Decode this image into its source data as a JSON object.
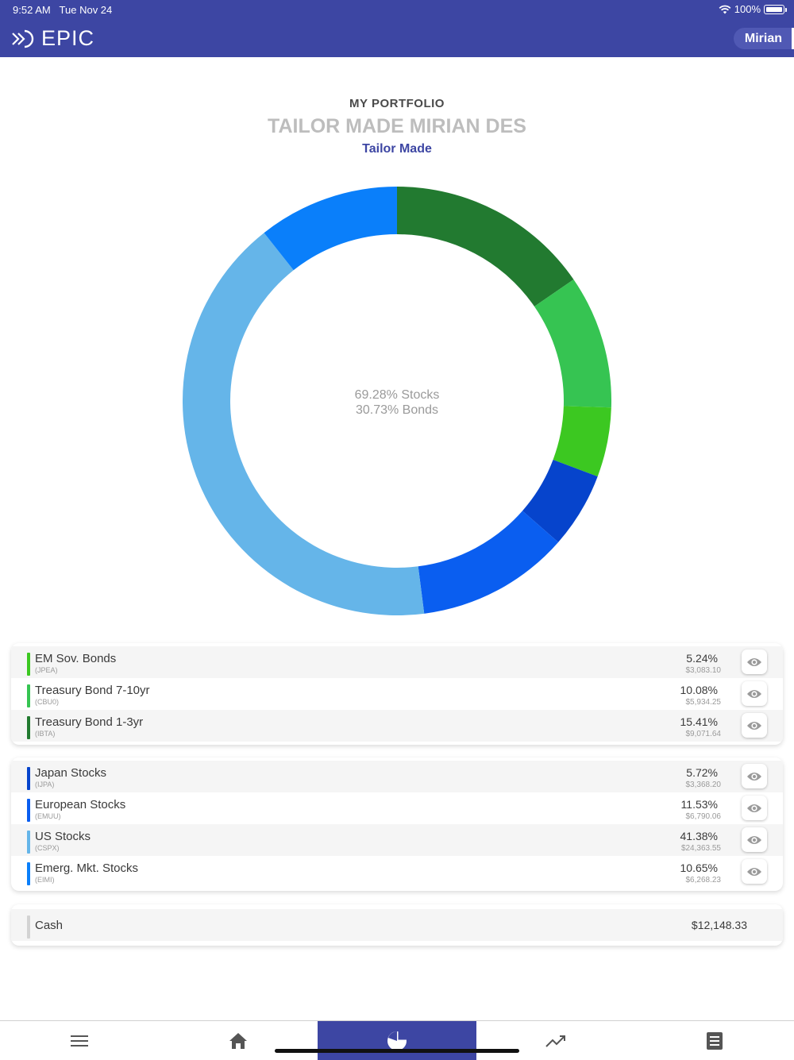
{
  "status": {
    "time": "9:52 AM",
    "date": "Tue Nov 24",
    "battery": "100%"
  },
  "header": {
    "logo_text": "EPIC",
    "user": "Mirian"
  },
  "titles": {
    "section": "MY PORTFOLIO",
    "portfolio_name": "TAILOR MADE MIRIAN DES",
    "portfolio_type": "Tailor Made"
  },
  "chart_data": {
    "type": "pie",
    "donut": true,
    "center_text": [
      "69.28% Stocks",
      "30.73% Bonds"
    ],
    "slices": [
      {
        "label": "Treasury Bond 1-3yr",
        "value": 15.41,
        "color": "#227a30"
      },
      {
        "label": "Treasury Bond 7-10yr",
        "value": 10.08,
        "color": "#36c452"
      },
      {
        "label": "EM Sov. Bonds",
        "value": 5.24,
        "color": "#3cc821"
      },
      {
        "label": "Japan Stocks",
        "value": 5.72,
        "color": "#0644cc"
      },
      {
        "label": "European Stocks",
        "value": 11.53,
        "color": "#0a5ef0"
      },
      {
        "label": "US Stocks",
        "value": 41.38,
        "color": "#65b5e9"
      },
      {
        "label": "Emerg. Mkt. Stocks",
        "value": 10.65,
        "color": "#0a7ffa"
      }
    ]
  },
  "bonds": [
    {
      "name": "EM Sov. Bonds",
      "ticker": "(JPEA)",
      "pct": "5.24%",
      "amount": "$3,083.10",
      "color": "#3cc821"
    },
    {
      "name": "Treasury Bond 7-10yr",
      "ticker": "(CBU0)",
      "pct": "10.08%",
      "amount": "$5,934.25",
      "color": "#36c452"
    },
    {
      "name": "Treasury Bond 1-3yr",
      "ticker": "(IBTA)",
      "pct": "15.41%",
      "amount": "$9,071.64",
      "color": "#227a30"
    }
  ],
  "stocks": [
    {
      "name": "Japan Stocks",
      "ticker": "(IJPA)",
      "pct": "5.72%",
      "amount": "$3,368.20",
      "color": "#0644cc"
    },
    {
      "name": "European Stocks",
      "ticker": "(EMUU)",
      "pct": "11.53%",
      "amount": "$6,790.06",
      "color": "#0a5ef0"
    },
    {
      "name": "US Stocks",
      "ticker": "(CSPX)",
      "pct": "41.38%",
      "amount": "$24,363.55",
      "color": "#65b5e9"
    },
    {
      "name": "Emerg. Mkt. Stocks",
      "ticker": "(EIMI)",
      "pct": "10.65%",
      "amount": "$6,268.23",
      "color": "#0a7ffa"
    }
  ],
  "cash": {
    "label": "Cash",
    "amount": "$12,148.33",
    "color": "#d3d3d3"
  },
  "nav": {
    "items": [
      "menu-icon",
      "home-icon",
      "pie-chart-icon",
      "trending-up-icon",
      "news-icon"
    ],
    "active": "pie-chart-icon",
    "accent": "#3d46a3"
  }
}
